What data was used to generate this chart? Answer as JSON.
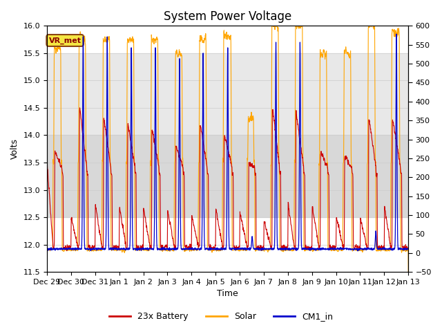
{
  "title": "System Power Voltage",
  "xlabel": "Time",
  "ylabel": "Volts",
  "ylim_left": [
    11.5,
    16.0
  ],
  "ylim_right": [
    -50,
    600
  ],
  "yticks_left": [
    11.5,
    12.0,
    12.5,
    13.0,
    13.5,
    14.0,
    14.5,
    15.0,
    15.5,
    16.0
  ],
  "yticks_right": [
    -50,
    0,
    50,
    100,
    150,
    200,
    250,
    300,
    350,
    400,
    450,
    500,
    550,
    600
  ],
  "x_tick_labels": [
    "Dec 29",
    "Dec 30",
    "Dec 31",
    "Jan 1",
    "Jan 2",
    "Jan 3",
    "Jan 4",
    "Jan 5",
    "Jan 6",
    "Jan 7",
    "Jan 8",
    "Jan 9",
    "Jan 10",
    "Jan 11",
    "Jan 12",
    "Jan 13"
  ],
  "colors": {
    "battery": "#cc0000",
    "solar": "#ffa500",
    "cm1": "#0000cc"
  },
  "legend_labels": [
    "23x Battery",
    "Solar",
    "CM1_in"
  ],
  "vr_met_label": "VR_met",
  "vr_met_text_color": "#8B0000",
  "vr_met_bg": "#f5e642",
  "vr_met_edge": "#8B4513",
  "band_light": [
    14.0,
    15.5
  ],
  "band_dark": [
    12.5,
    14.0
  ],
  "band_light_color": "#e8e8e8",
  "band_dark_color": "#d8d8d8",
  "title_fontsize": 12,
  "axis_fontsize": 9,
  "tick_fontsize": 8,
  "legend_fontsize": 9
}
